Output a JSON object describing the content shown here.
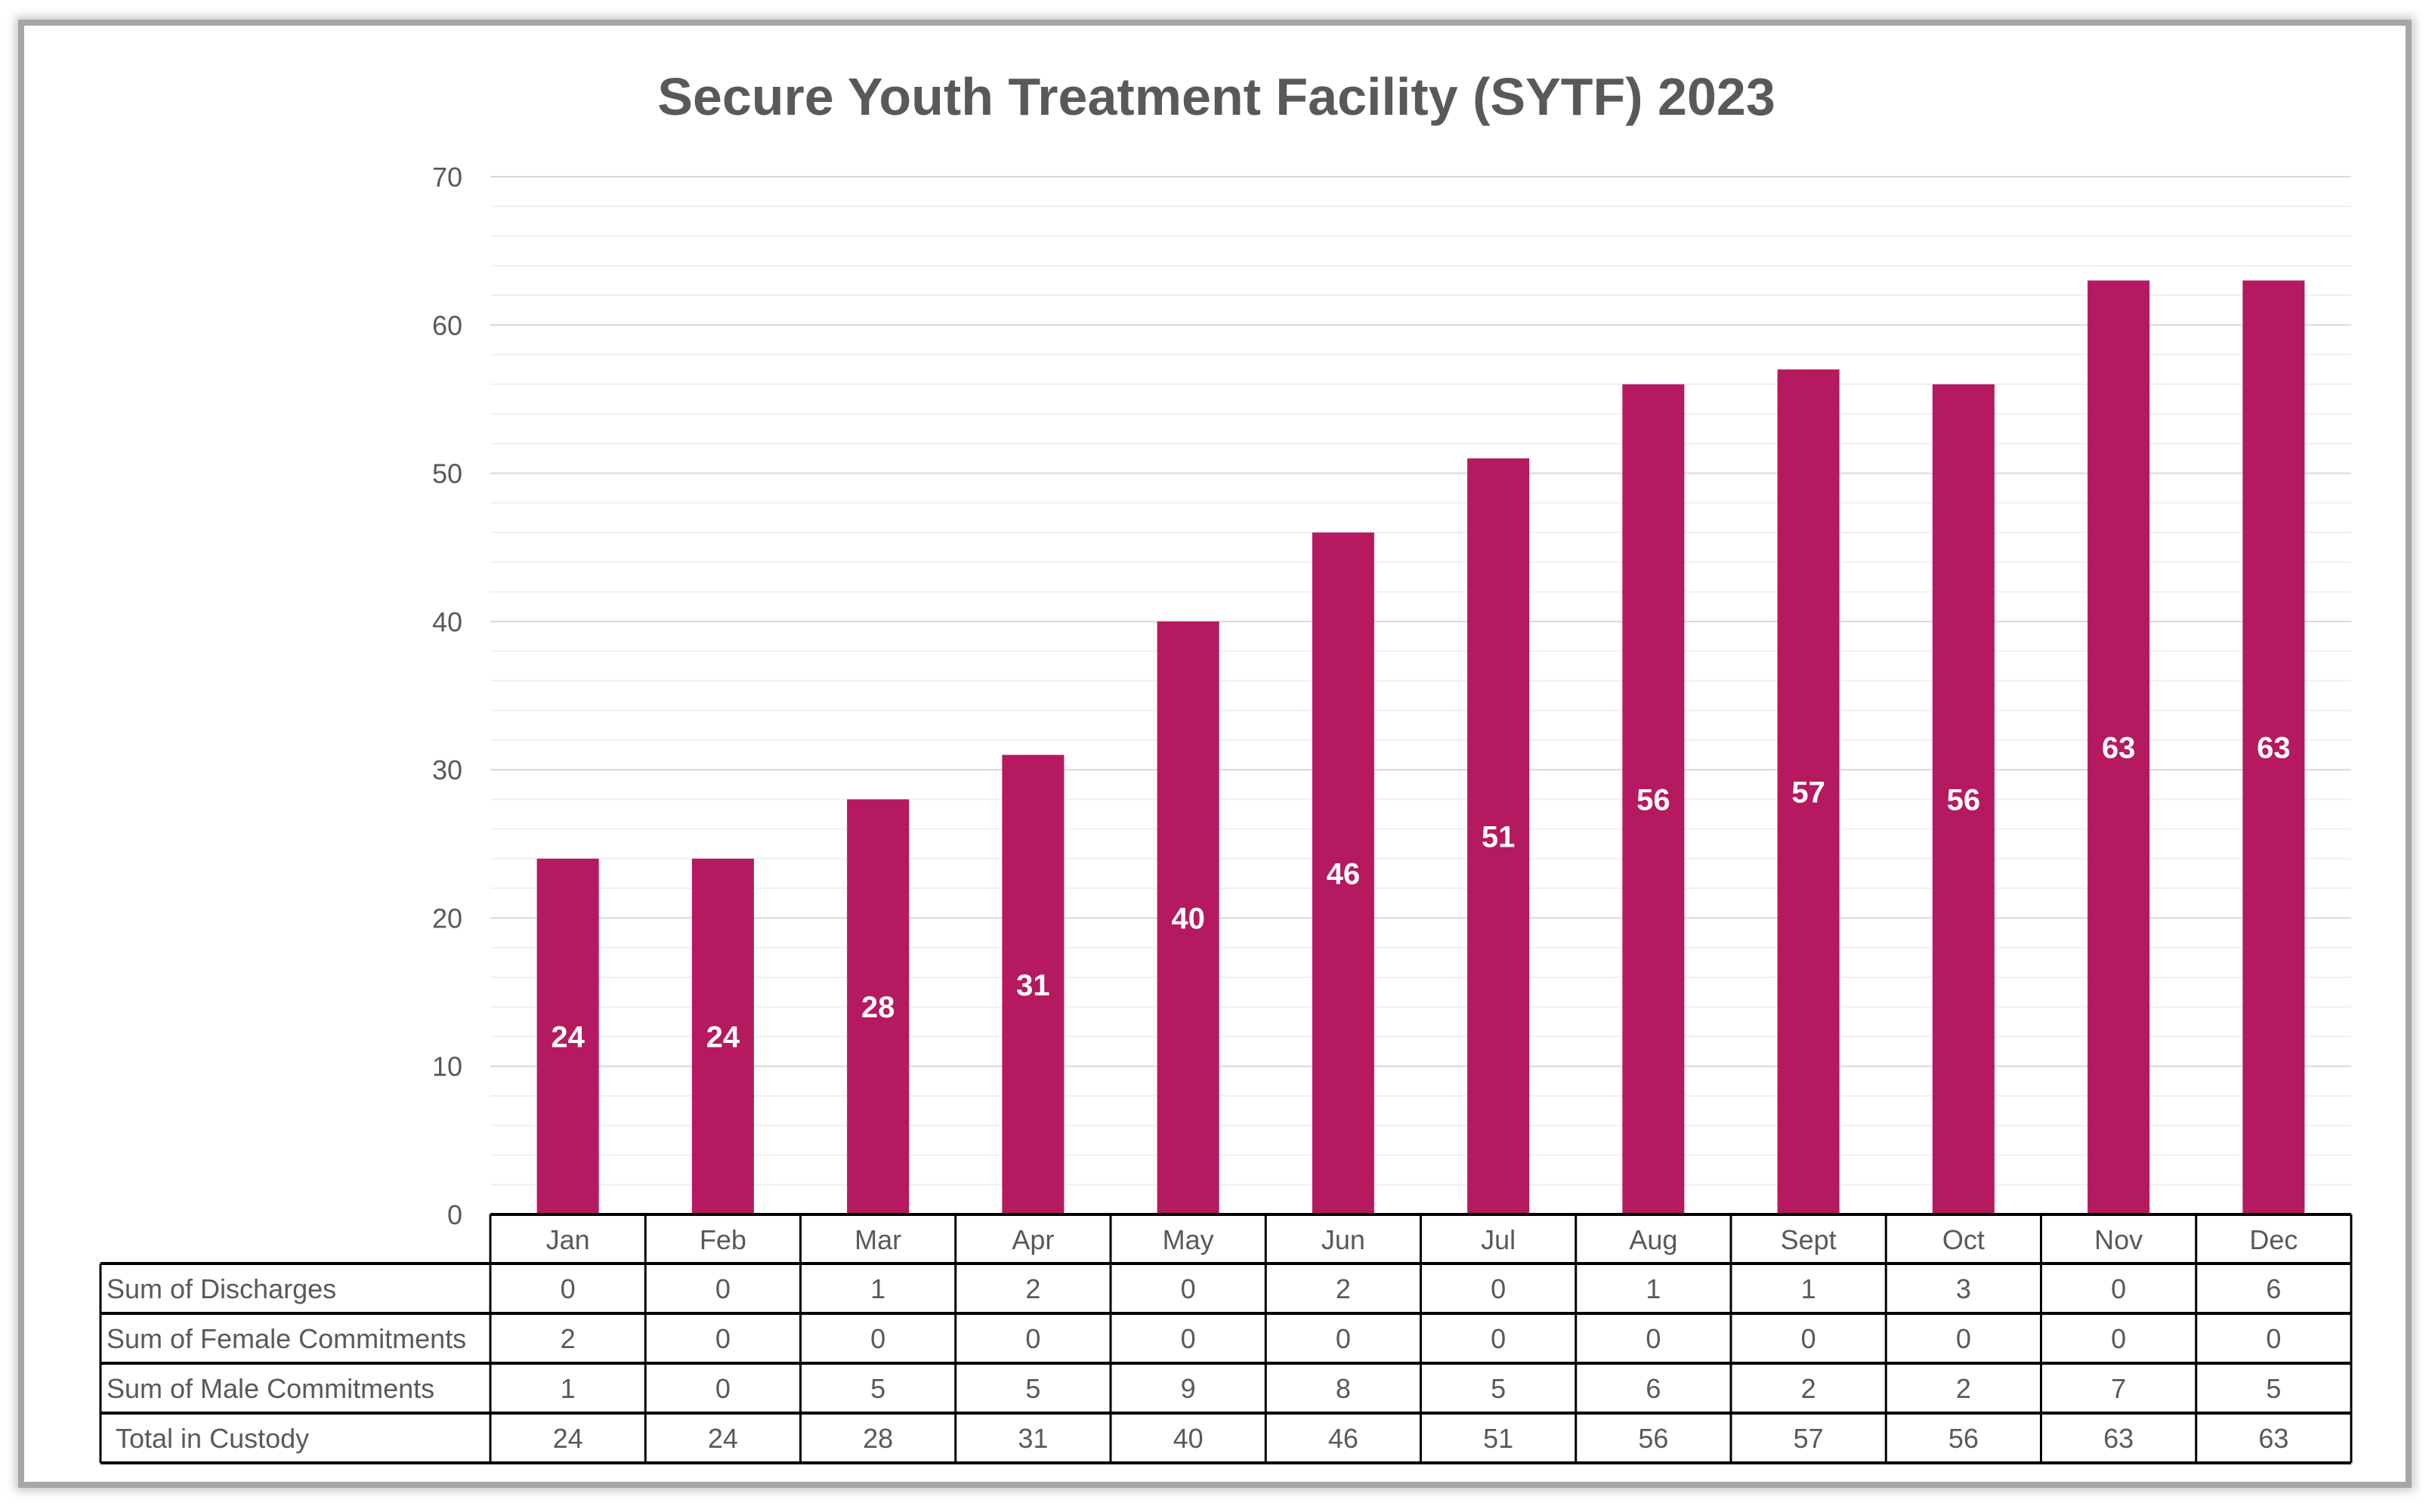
{
  "chart_data": {
    "type": "bar",
    "title": "Secure Youth Treatment Facility (SYTF) 2023",
    "categories": [
      "Jan",
      "Feb",
      "Mar",
      "Apr",
      "May",
      "Jun",
      "Jul",
      "Aug",
      "Sept",
      "Oct",
      "Nov",
      "Dec"
    ],
    "series": [
      {
        "values": [
          24,
          24,
          28,
          31,
          40,
          46,
          51,
          56,
          57,
          56,
          63,
          63
        ]
      }
    ],
    "data_labels": true,
    "ylim": [
      0,
      70
    ],
    "yticks": [
      0,
      10,
      20,
      30,
      40,
      50,
      60,
      70
    ],
    "grid": true,
    "bar_color": "#B5195F",
    "data_table": {
      "rows": [
        {
          "label": "Sum of Discharges",
          "values": [
            0,
            0,
            1,
            2,
            0,
            2,
            0,
            1,
            1,
            3,
            0,
            6
          ]
        },
        {
          "label": "Sum of Female Commitments",
          "values": [
            2,
            0,
            0,
            0,
            0,
            0,
            0,
            0,
            0,
            0,
            0,
            0
          ]
        },
        {
          "label": "Sum of Male Commitments",
          "values": [
            1,
            0,
            5,
            5,
            9,
            8,
            5,
            6,
            2,
            2,
            7,
            5
          ]
        },
        {
          "label": "Total in Custody",
          "values": [
            24,
            24,
            28,
            31,
            40,
            46,
            51,
            56,
            57,
            56,
            63,
            63
          ]
        }
      ]
    }
  }
}
